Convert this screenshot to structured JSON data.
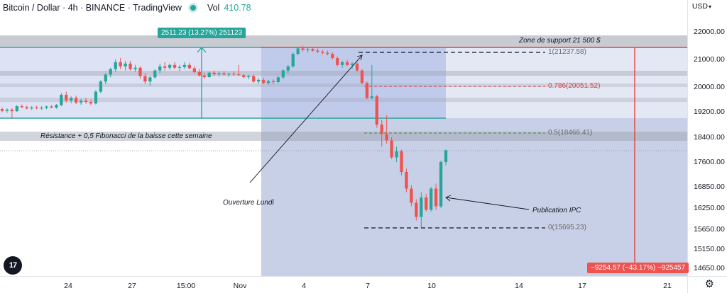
{
  "header": {
    "title": "Bitcoin / Dollar · 4h · BINANCE · TradingView",
    "volume_label": "Vol",
    "volume_value": "410.78"
  },
  "price_axis": {
    "currency_label": "USD",
    "currency_caret": "▾",
    "ticks": [
      "22000.00",
      "21000.00",
      "20000.00",
      "19200.00",
      "18400.00",
      "17600.00",
      "16850.00",
      "16250.00",
      "15650.00",
      "15150.00",
      "14650.00"
    ]
  },
  "time_axis": {
    "ticks": [
      "24",
      "27",
      "15:00",
      "Nov",
      "4",
      "7",
      "10",
      "14",
      "17",
      "21"
    ]
  },
  "annotations": {
    "support_zone": "Zone de support 21 500 $",
    "resistance": "Résistance + 0,5 Fibonacci de la baisse cette semaine",
    "monday_open": "Ouverture Lundi",
    "cpi_release": "Publication IPC"
  },
  "fibonacci_levels": [
    {
      "label": "1(21237.58)",
      "ratio": 1,
      "price": 21237.58
    },
    {
      "label": "0.786(20051.52)",
      "ratio": 0.786,
      "price": 20051.52
    },
    {
      "label": "0.5(18466.41)",
      "ratio": 0.5,
      "price": 18466.41
    },
    {
      "label": "0(15695.23)",
      "ratio": 0,
      "price": 15695.23
    }
  ],
  "measure_boxes": {
    "rise": "2511.23 (13.27%) 251123",
    "fall": "−9254.57 (−43.17%) −925457"
  },
  "logo_text": "17",
  "settings_icon": "⚙",
  "colors": {
    "up": "#26a69a",
    "down": "#ef5350",
    "fib_line": "#131722",
    "fib_red": "#e03c3c",
    "fib_green": "#3d8b3d",
    "support_line": "#e53935",
    "range_line": "#26a69a",
    "shade": "#c5cde6",
    "band": "#9aa0ad"
  },
  "chart_data": {
    "type": "candlestick",
    "title": "Bitcoin / Dollar · 4h · BINANCE · TradingView",
    "timeframe": "4h",
    "ylim": [
      14500,
      22200
    ],
    "grid": false,
    "x_ticks": [
      "24",
      "27",
      "15:00",
      "Nov",
      "4",
      "7",
      "10",
      "14",
      "17",
      "21"
    ],
    "candles": [
      {
        "o": 19290,
        "h": 19340,
        "l": 19190,
        "c": 19230
      },
      {
        "o": 19230,
        "h": 19310,
        "l": 19170,
        "c": 19270
      },
      {
        "o": 19270,
        "h": 19320,
        "l": 18980,
        "c": 19220
      },
      {
        "o": 19220,
        "h": 19420,
        "l": 19200,
        "c": 19380
      },
      {
        "o": 19380,
        "h": 19440,
        "l": 19320,
        "c": 19350
      },
      {
        "o": 19350,
        "h": 19400,
        "l": 19280,
        "c": 19310
      },
      {
        "o": 19310,
        "h": 19380,
        "l": 19260,
        "c": 19340
      },
      {
        "o": 19340,
        "h": 19400,
        "l": 19280,
        "c": 19320
      },
      {
        "o": 19320,
        "h": 19380,
        "l": 19270,
        "c": 19330
      },
      {
        "o": 19330,
        "h": 19400,
        "l": 19290,
        "c": 19370
      },
      {
        "o": 19370,
        "h": 19420,
        "l": 19310,
        "c": 19340
      },
      {
        "o": 19340,
        "h": 19450,
        "l": 19300,
        "c": 19420
      },
      {
        "o": 19420,
        "h": 19800,
        "l": 19380,
        "c": 19750
      },
      {
        "o": 19750,
        "h": 19850,
        "l": 19500,
        "c": 19560
      },
      {
        "o": 19560,
        "h": 19700,
        "l": 19480,
        "c": 19650
      },
      {
        "o": 19650,
        "h": 19720,
        "l": 19450,
        "c": 19500
      },
      {
        "o": 19500,
        "h": 19620,
        "l": 19430,
        "c": 19560
      },
      {
        "o": 19560,
        "h": 19650,
        "l": 19460,
        "c": 19520
      },
      {
        "o": 19520,
        "h": 19600,
        "l": 19420,
        "c": 19470
      },
      {
        "o": 19470,
        "h": 19900,
        "l": 19440,
        "c": 19850
      },
      {
        "o": 19850,
        "h": 20250,
        "l": 19800,
        "c": 20200
      },
      {
        "o": 20200,
        "h": 20500,
        "l": 20100,
        "c": 20450
      },
      {
        "o": 20450,
        "h": 20700,
        "l": 20350,
        "c": 20650
      },
      {
        "o": 20650,
        "h": 21000,
        "l": 20550,
        "c": 20900
      },
      {
        "o": 20900,
        "h": 21050,
        "l": 20650,
        "c": 20750
      },
      {
        "o": 20750,
        "h": 20950,
        "l": 20600,
        "c": 20850
      },
      {
        "o": 20850,
        "h": 20950,
        "l": 20600,
        "c": 20650
      },
      {
        "o": 20650,
        "h": 20800,
        "l": 20550,
        "c": 20700
      },
      {
        "o": 20700,
        "h": 20750,
        "l": 20300,
        "c": 20400
      },
      {
        "o": 20400,
        "h": 20500,
        "l": 20100,
        "c": 20200
      },
      {
        "o": 20200,
        "h": 20400,
        "l": 20050,
        "c": 20350
      },
      {
        "o": 20350,
        "h": 20650,
        "l": 20300,
        "c": 20600
      },
      {
        "o": 20600,
        "h": 20850,
        "l": 20500,
        "c": 20750
      },
      {
        "o": 20750,
        "h": 20900,
        "l": 20600,
        "c": 20700
      },
      {
        "o": 20700,
        "h": 20850,
        "l": 20620,
        "c": 20800
      },
      {
        "o": 20800,
        "h": 20900,
        "l": 20650,
        "c": 20700
      },
      {
        "o": 20700,
        "h": 20800,
        "l": 20580,
        "c": 20720
      },
      {
        "o": 20720,
        "h": 20900,
        "l": 20650,
        "c": 20800
      },
      {
        "o": 20800,
        "h": 20880,
        "l": 20640,
        "c": 20680
      },
      {
        "o": 20680,
        "h": 20760,
        "l": 20500,
        "c": 20540
      },
      {
        "o": 20540,
        "h": 20650,
        "l": 20380,
        "c": 20420
      },
      {
        "o": 20420,
        "h": 20520,
        "l": 20300,
        "c": 20360
      },
      {
        "o": 20360,
        "h": 20560,
        "l": 20340,
        "c": 20520
      },
      {
        "o": 20520,
        "h": 20600,
        "l": 20400,
        "c": 20460
      },
      {
        "o": 20460,
        "h": 20560,
        "l": 20380,
        "c": 20500
      },
      {
        "o": 20500,
        "h": 20580,
        "l": 20420,
        "c": 20450
      },
      {
        "o": 20450,
        "h": 20520,
        "l": 20360,
        "c": 20480
      },
      {
        "o": 20480,
        "h": 20560,
        "l": 20400,
        "c": 20460
      },
      {
        "o": 20460,
        "h": 20800,
        "l": 20400,
        "c": 20430
      },
      {
        "o": 20430,
        "h": 20480,
        "l": 20320,
        "c": 20360
      },
      {
        "o": 20360,
        "h": 20450,
        "l": 20280,
        "c": 20400
      },
      {
        "o": 20400,
        "h": 20450,
        "l": 20150,
        "c": 20200
      },
      {
        "o": 20200,
        "h": 20320,
        "l": 20120,
        "c": 20260
      },
      {
        "o": 20260,
        "h": 20340,
        "l": 20100,
        "c": 20150
      },
      {
        "o": 20150,
        "h": 20260,
        "l": 20080,
        "c": 20220
      },
      {
        "o": 20220,
        "h": 20280,
        "l": 20100,
        "c": 20180
      },
      {
        "o": 20180,
        "h": 20400,
        "l": 20150,
        "c": 20350
      },
      {
        "o": 20350,
        "h": 20650,
        "l": 20300,
        "c": 20600
      },
      {
        "o": 20600,
        "h": 20800,
        "l": 20500,
        "c": 20750
      },
      {
        "o": 20750,
        "h": 21250,
        "l": 20700,
        "c": 21200
      },
      {
        "o": 21200,
        "h": 21450,
        "l": 21150,
        "c": 21400
      },
      {
        "o": 21400,
        "h": 21500,
        "l": 21280,
        "c": 21350
      },
      {
        "o": 21350,
        "h": 21450,
        "l": 21250,
        "c": 21380
      },
      {
        "o": 21380,
        "h": 21450,
        "l": 21280,
        "c": 21320
      },
      {
        "o": 21320,
        "h": 21400,
        "l": 21230,
        "c": 21280
      },
      {
        "o": 21280,
        "h": 21350,
        "l": 21180,
        "c": 21240
      },
      {
        "o": 21240,
        "h": 21320,
        "l": 21150,
        "c": 21200
      },
      {
        "o": 21200,
        "h": 21260,
        "l": 21000,
        "c": 21050
      },
      {
        "o": 21050,
        "h": 21100,
        "l": 20750,
        "c": 20800
      },
      {
        "o": 20800,
        "h": 20950,
        "l": 20700,
        "c": 20900
      },
      {
        "o": 20900,
        "h": 20980,
        "l": 20750,
        "c": 20800
      },
      {
        "o": 20800,
        "h": 20900,
        "l": 20650,
        "c": 20850
      },
      {
        "o": 20850,
        "h": 20900,
        "l": 20550,
        "c": 20600
      },
      {
        "o": 20600,
        "h": 20650,
        "l": 20100,
        "c": 20150
      },
      {
        "o": 20150,
        "h": 20200,
        "l": 19600,
        "c": 19650
      },
      {
        "o": 19650,
        "h": 20800,
        "l": 19600,
        "c": 19700
      },
      {
        "o": 19700,
        "h": 19750,
        "l": 18700,
        "c": 18800
      },
      {
        "o": 18800,
        "h": 18950,
        "l": 18100,
        "c": 18500
      },
      {
        "o": 18500,
        "h": 19100,
        "l": 18200,
        "c": 18300
      },
      {
        "o": 18300,
        "h": 18400,
        "l": 17700,
        "c": 17750
      },
      {
        "o": 17750,
        "h": 18100,
        "l": 17600,
        "c": 17950
      },
      {
        "o": 17950,
        "h": 18000,
        "l": 17200,
        "c": 17300
      },
      {
        "o": 17300,
        "h": 17400,
        "l": 16700,
        "c": 16800
      },
      {
        "o": 16800,
        "h": 16900,
        "l": 16300,
        "c": 16400
      },
      {
        "o": 16400,
        "h": 16500,
        "l": 15900,
        "c": 16000
      },
      {
        "o": 16000,
        "h": 16700,
        "l": 15700,
        "c": 16550
      },
      {
        "o": 16550,
        "h": 16650,
        "l": 16150,
        "c": 16200
      },
      {
        "o": 16200,
        "h": 16850,
        "l": 16150,
        "c": 16800
      },
      {
        "o": 16800,
        "h": 16950,
        "l": 16200,
        "c": 16300
      },
      {
        "o": 16300,
        "h": 17650,
        "l": 16250,
        "c": 17600
      },
      {
        "o": 17600,
        "h": 18000,
        "l": 17500,
        "c": 17980
      }
    ]
  }
}
